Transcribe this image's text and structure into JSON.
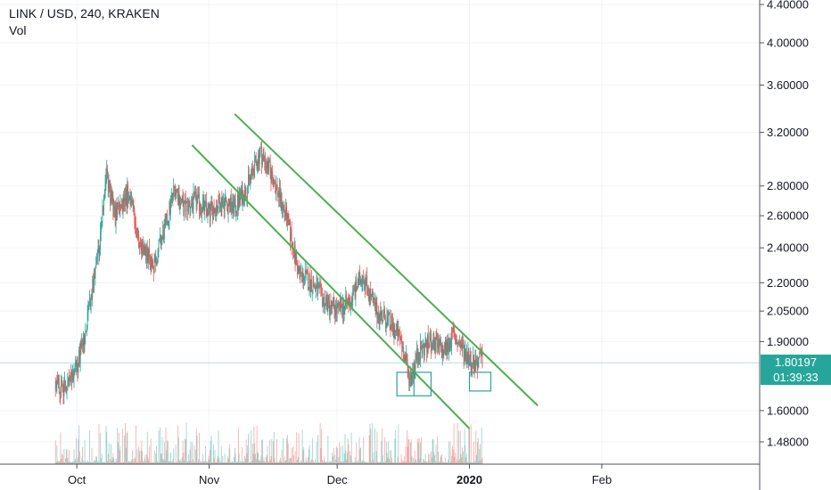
{
  "header": {
    "symbol_line": "LINK / USD, 240, KRAKEN",
    "volume_label": "Vol"
  },
  "price_tag": {
    "price": "1.80197",
    "countdown": "01:39:33"
  },
  "colors": {
    "up": "#26a69a",
    "down": "#ef5350",
    "trendline": "#4caf50",
    "box": "#26a69a",
    "price_line": "#26a69a"
  },
  "chart_data": {
    "type": "candlestick",
    "y_scale": "log",
    "ylim": [
      1.4,
      4.45
    ],
    "y_ticks": [
      "1.48000",
      "1.60000",
      "1.90000",
      "2.05000",
      "2.20000",
      "2.40000",
      "2.60000",
      "2.80000",
      "3.20000",
      "3.60000",
      "4.00000",
      "4.40000"
    ],
    "x_ticks": [
      "Oct",
      "Nov",
      "Dec",
      "2020",
      "Feb"
    ],
    "x_tick_dates": [
      "2019-10-01",
      "2019-11-01",
      "2019-12-01",
      "2020-01-01",
      "2020-02-01"
    ],
    "x_range": [
      "2019-09-13",
      "2020-03-09"
    ],
    "approx_close_path": [
      [
        "2019-09-26",
        1.72
      ],
      [
        "2019-09-28",
        1.68
      ],
      [
        "2019-10-01",
        1.78
      ],
      [
        "2019-10-03",
        1.95
      ],
      [
        "2019-10-06",
        2.35
      ],
      [
        "2019-10-08",
        2.85
      ],
      [
        "2019-10-10",
        2.6
      ],
      [
        "2019-10-13",
        2.75
      ],
      [
        "2019-10-16",
        2.4
      ],
      [
        "2019-10-19",
        2.3
      ],
      [
        "2019-10-22",
        2.55
      ],
      [
        "2019-10-24",
        2.8
      ],
      [
        "2019-10-26",
        2.65
      ],
      [
        "2019-10-29",
        2.7
      ],
      [
        "2019-11-01",
        2.62
      ],
      [
        "2019-11-04",
        2.7
      ],
      [
        "2019-11-07",
        2.65
      ],
      [
        "2019-11-10",
        2.8
      ],
      [
        "2019-11-13",
        3.05
      ],
      [
        "2019-11-16",
        2.85
      ],
      [
        "2019-11-19",
        2.6
      ],
      [
        "2019-11-22",
        2.25
      ],
      [
        "2019-11-25",
        2.2
      ],
      [
        "2019-11-28",
        2.1
      ],
      [
        "2019-12-01",
        2.05
      ],
      [
        "2019-12-04",
        2.1
      ],
      [
        "2019-12-07",
        2.25
      ],
      [
        "2019-12-10",
        2.05
      ],
      [
        "2019-12-13",
        2.0
      ],
      [
        "2019-12-16",
        1.9
      ],
      [
        "2019-12-18",
        1.73
      ],
      [
        "2019-12-20",
        1.85
      ],
      [
        "2019-12-23",
        1.9
      ],
      [
        "2019-12-26",
        1.85
      ],
      [
        "2019-12-28",
        1.93
      ],
      [
        "2019-12-31",
        1.85
      ],
      [
        "2020-01-02",
        1.8
      ],
      [
        "2020-01-04",
        1.82
      ]
    ],
    "trendlines": [
      {
        "from": [
          "2019-10-28",
          3.1
        ],
        "to": [
          "2020-01-01",
          1.53
        ]
      },
      {
        "from": [
          "2019-11-07",
          3.35
        ],
        "to": [
          "2020-01-17",
          1.62
        ]
      }
    ],
    "highlight_boxes": [
      {
        "x": [
          "2019-12-15",
          "2019-12-23"
        ],
        "y": [
          1.66,
          1.76
        ]
      },
      {
        "x": [
          "2020-01-01",
          "2020-01-06"
        ],
        "y": [
          1.68,
          1.76
        ]
      }
    ],
    "current_price": 1.80197
  }
}
